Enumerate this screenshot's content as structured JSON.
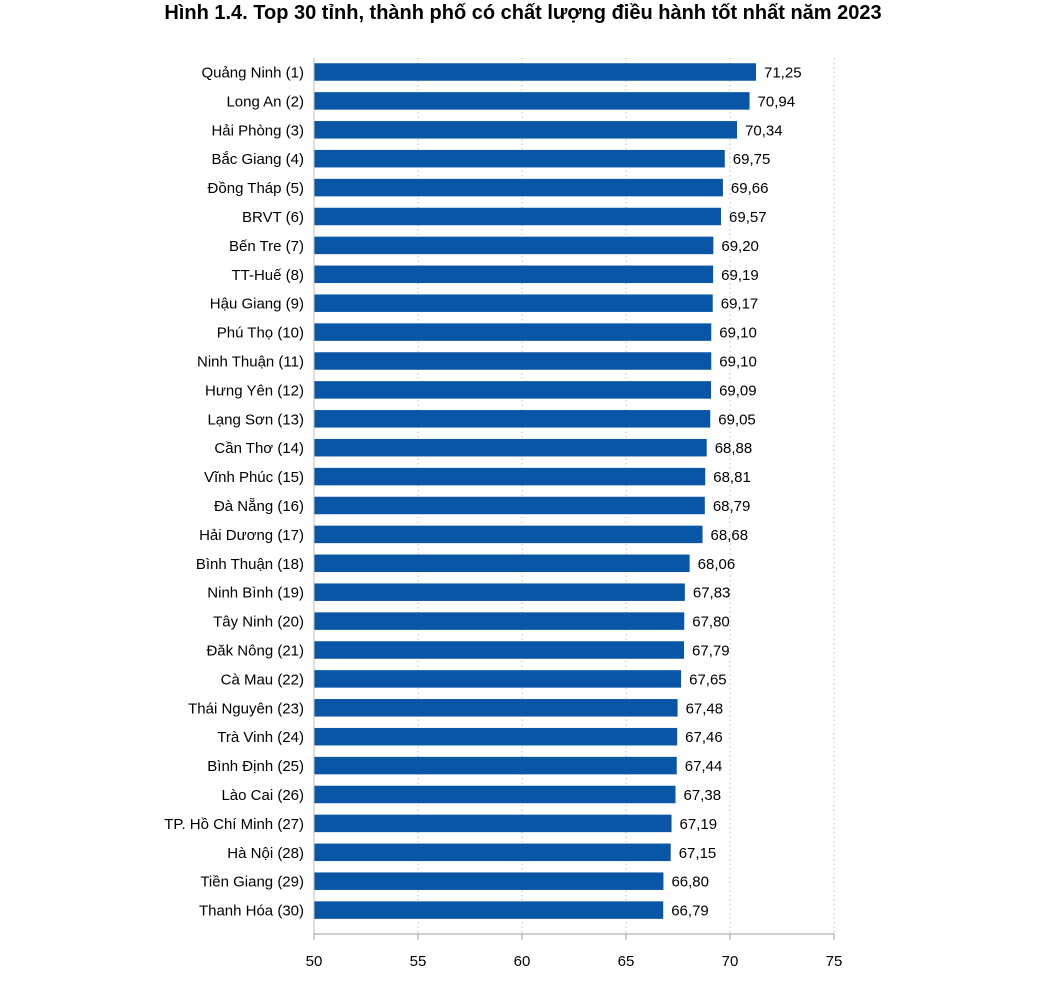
{
  "chart_data": {
    "type": "bar",
    "orientation": "horizontal",
    "title": "Hình 1.4. Top 30 tỉnh, thành phố có chất lượng điều hành tốt nhất năm 2023",
    "xlabel": "",
    "ylabel": "",
    "xlim": [
      50,
      75
    ],
    "xticks": [
      50,
      55,
      60,
      65,
      70,
      75
    ],
    "grid": "vertical-dotted",
    "bar_color": "#0a56a6",
    "categories": [
      "Quảng Ninh (1)",
      "Long An (2)",
      "Hải Phòng (3)",
      "Bắc Giang (4)",
      "Đồng Tháp (5)",
      "BRVT (6)",
      "Bến Tre (7)",
      "TT-Huế (8)",
      "Hậu Giang (9)",
      "Phú Thọ (10)",
      "Ninh Thuận (11)",
      "Hưng Yên (12)",
      "Lạng Sơn (13)",
      "Cần Thơ (14)",
      "Vĩnh Phúc (15)",
      "Đà Nẵng (16)",
      "Hải Dương (17)",
      "Bình Thuận (18)",
      "Ninh Bình (19)",
      "Tây Ninh (20)",
      "Đăk Nông (21)",
      "Cà Mau (22)",
      "Thái Nguyên (23)",
      "Trà Vinh (24)",
      "Bình Định (25)",
      "Lào Cai (26)",
      "TP. Hồ Chí Minh (27)",
      "Hà Nội (28)",
      "Tiền Giang (29)",
      "Thanh Hóa (30)"
    ],
    "values": [
      71.25,
      70.94,
      70.34,
      69.75,
      69.66,
      69.57,
      69.2,
      69.19,
      69.17,
      69.1,
      69.1,
      69.09,
      69.05,
      68.88,
      68.81,
      68.79,
      68.68,
      68.06,
      67.83,
      67.8,
      67.79,
      67.65,
      67.48,
      67.46,
      67.44,
      67.38,
      67.19,
      67.15,
      66.8,
      66.79
    ],
    "value_labels": [
      "71,25",
      "70,94",
      "70,34",
      "69,75",
      "69,66",
      "69,57",
      "69,20",
      "69,19",
      "69,17",
      "69,10",
      "69,10",
      "69,09",
      "69,05",
      "68,88",
      "68,81",
      "68,79",
      "68,68",
      "68,06",
      "67,83",
      "67,80",
      "67,79",
      "67,65",
      "67,48",
      "67,46",
      "67,44",
      "67,38",
      "67,19",
      "67,15",
      "66,80",
      "66,79"
    ]
  }
}
